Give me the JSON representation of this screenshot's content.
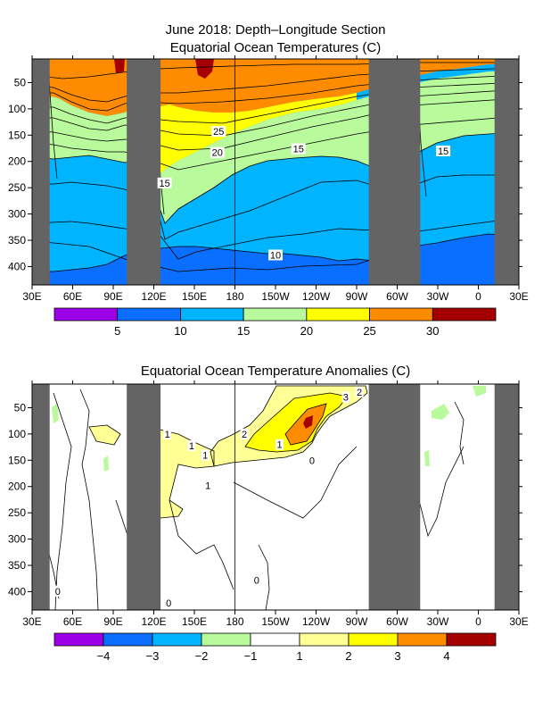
{
  "chart_data": [
    {
      "type": "heatmap",
      "title_line1": "June 2018: Depth–Longitude Section",
      "title_line2": "Equatorial Ocean Temperatures (C)",
      "x_ticks": [
        "30E",
        "60E",
        "90E",
        "120E",
        "150E",
        "180",
        "150W",
        "120W",
        "90W",
        "60W",
        "30W",
        "0",
        "30E"
      ],
      "x_range_deg_east": [
        30,
        390
      ],
      "y_ticks": [
        50,
        100,
        150,
        200,
        250,
        300,
        350,
        400
      ],
      "y_range_m": [
        5,
        435
      ],
      "land_masks_deg_east": [
        [
          30,
          43
        ],
        [
          100,
          125
        ],
        [
          279,
          317
        ],
        [
          372,
          390
        ]
      ],
      "contour_labels": [
        {
          "text": "25",
          "lon": 168,
          "depth": 143
        },
        {
          "text": "20",
          "lon": 167,
          "depth": 183
        },
        {
          "text": "15",
          "lon": 227,
          "depth": 176
        },
        {
          "text": "15",
          "lon": 128,
          "depth": 241
        },
        {
          "text": "15",
          "lon": 334,
          "depth": 180
        },
        {
          "text": "10",
          "lon": 210,
          "depth": 378
        }
      ],
      "colorbar": {
        "colors": [
          "#9b00e6",
          "#0a6eff",
          "#00b4ff",
          "#b8fa9c",
          "#ffff00",
          "#ff8c00",
          "#a50000"
        ],
        "tick_labels": [
          "5",
          "10",
          "15",
          "20",
          "25",
          "30"
        ]
      }
    },
    {
      "type": "heatmap",
      "title": "Equatorial Ocean Temperature Anomalies (C)",
      "x_ticks": [
        "30E",
        "60E",
        "90E",
        "120E",
        "150E",
        "180",
        "150W",
        "120W",
        "90W",
        "60W",
        "30W",
        "0",
        "30E"
      ],
      "x_range_deg_east": [
        30,
        390
      ],
      "y_ticks": [
        50,
        100,
        150,
        200,
        250,
        300,
        350,
        400
      ],
      "y_range_m": [
        5,
        435
      ],
      "land_masks_deg_east": [
        [
          30,
          43
        ],
        [
          100,
          125
        ],
        [
          279,
          317
        ],
        [
          372,
          390
        ]
      ],
      "contour_labels": [
        {
          "text": "3",
          "lon": 262,
          "depth": 30
        },
        {
          "text": "2",
          "lon": 272,
          "depth": 20
        },
        {
          "text": "2",
          "lon": 187,
          "depth": 100
        },
        {
          "text": "1",
          "lon": 130,
          "depth": 100
        },
        {
          "text": "1",
          "lon": 148,
          "depth": 122
        },
        {
          "text": "1",
          "lon": 158,
          "depth": 140
        },
        {
          "text": "1",
          "lon": 213,
          "depth": 120
        },
        {
          "text": "1",
          "lon": 160,
          "depth": 198
        },
        {
          "text": "0",
          "lon": 237,
          "depth": 150
        },
        {
          "text": "0",
          "lon": 196,
          "depth": 378
        },
        {
          "text": "0",
          "lon": 49,
          "depth": 399
        },
        {
          "text": "0",
          "lon": 131,
          "depth": 421
        }
      ],
      "colorbar": {
        "colors": [
          "#9b00e6",
          "#0a6eff",
          "#00b4ff",
          "#b8fa9c",
          "#ffffff",
          "#ffff96",
          "#ffff00",
          "#ff8c00",
          "#a50000"
        ],
        "tick_labels": [
          "−4",
          "−3",
          "−2",
          "−1",
          "1",
          "2",
          "3",
          "4"
        ]
      }
    }
  ]
}
